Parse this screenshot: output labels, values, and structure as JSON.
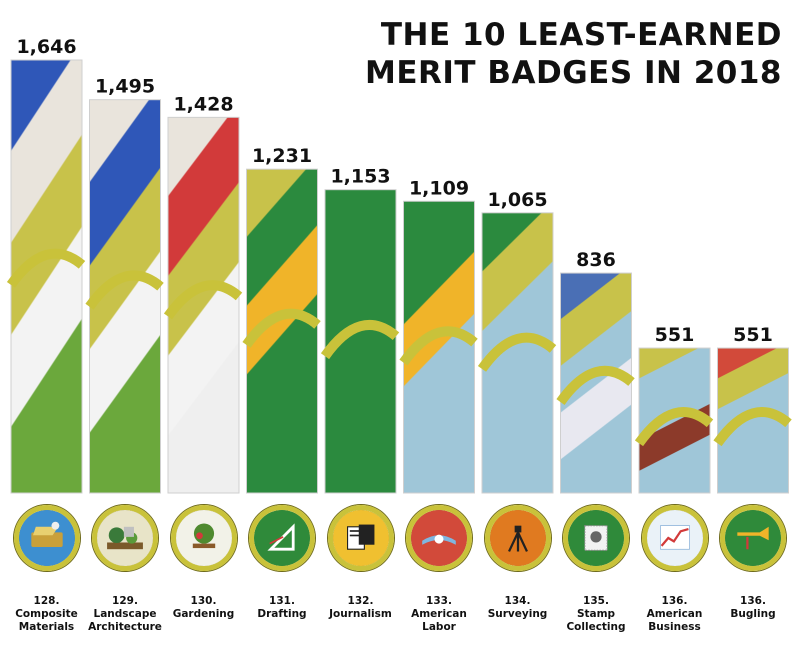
{
  "chart_data": {
    "type": "bar",
    "title_lines": [
      "THE 10 LEAST-EARNED",
      "MERIT BADGES IN 2018"
    ],
    "categories": [
      {
        "rank": "128.",
        "lines": [
          "Composite",
          "Materials"
        ]
      },
      {
        "rank": "129.",
        "lines": [
          "Landscape",
          "Architecture"
        ]
      },
      {
        "rank": "130.",
        "lines": [
          "Gardening"
        ]
      },
      {
        "rank": "131.",
        "lines": [
          "Drafting"
        ]
      },
      {
        "rank": "132.",
        "lines": [
          "Journalism"
        ]
      },
      {
        "rank": "133.",
        "lines": [
          "American",
          "Labor"
        ]
      },
      {
        "rank": "134.",
        "lines": [
          "Surveying"
        ]
      },
      {
        "rank": "135.",
        "lines": [
          "Stamp",
          "Collecting"
        ]
      },
      {
        "rank": "136.",
        "lines": [
          "American",
          "Business"
        ]
      },
      {
        "rank": "136.",
        "lines": [
          "Bugling"
        ]
      }
    ],
    "values": [
      1646,
      1495,
      1428,
      1231,
      1153,
      1109,
      1065,
      836,
      551,
      551
    ],
    "value_labels": [
      "1,646",
      "1,495",
      "1,428",
      "1,231",
      "1,153",
      "1,109",
      "1,065",
      "836",
      "551",
      "551"
    ],
    "xlabel": "",
    "ylabel": "",
    "ylim": [
      0,
      1646
    ],
    "grid": false,
    "legend": "none"
  },
  "colors": {
    "badge_rim": "#c9c23a",
    "text": "#111111",
    "bar_patterns": [
      [
        "#2f57b8",
        "#e9e4dc",
        "#c8c24a",
        "#f3f3f3",
        "#6ba83c"
      ],
      [
        "#e9e4dc",
        "#2f57b8",
        "#c8c24a",
        "#f3f3f3",
        "#6ba83c"
      ],
      [
        "#e9e4dc",
        "#d23a3a",
        "#c8c24a",
        "#f3f3f3",
        "#efefef"
      ],
      [
        "#c8c24a",
        "#2b8a3e",
        "#f0b429",
        "#2b8a3e",
        "#2b8a3e"
      ],
      [
        "#2b8a3e",
        "#2b8a3e",
        "#2b8a3e",
        "#2b8a3e",
        "#2b8a3e"
      ],
      [
        "#2b8a3e",
        "#2b8a3e",
        "#f0b429",
        "#9fc6d8",
        "#9fc6d8"
      ],
      [
        "#2b8a3e",
        "#c8c24a",
        "#9fc6d8",
        "#9fc6d8",
        "#9fc6d8"
      ],
      [
        "#4a6fb5",
        "#c8c24a",
        "#9fc6d8",
        "#e8e8f0",
        "#9fc6d8"
      ],
      [
        "#c8c24a",
        "#9fc6d8",
        "#9fc6d8",
        "#8c3a2a",
        "#9fc6d8"
      ],
      [
        "#d24a3a",
        "#c8c24a",
        "#9fc6d8",
        "#9fc6d8",
        "#9fc6d8"
      ]
    ]
  },
  "badges": [
    {
      "icon": "composite-materials-icon",
      "bg": "#3d8fd0",
      "fg": "#c9a03a"
    },
    {
      "icon": "landscape-architecture-icon",
      "bg": "#e8e4c8",
      "fg": "#3a7a3a"
    },
    {
      "icon": "gardening-icon",
      "bg": "#f2f2e8",
      "fg": "#4f8a2f"
    },
    {
      "icon": "drafting-icon",
      "bg": "#2f8a3a",
      "fg": "#ffffff"
    },
    {
      "icon": "journalism-icon",
      "bg": "#f0c030",
      "fg": "#222222"
    },
    {
      "icon": "american-labor-icon",
      "bg": "#d24a3a",
      "fg": "#7fb6e0"
    },
    {
      "icon": "surveying-icon",
      "bg": "#e07a20",
      "fg": "#222222"
    },
    {
      "icon": "stamp-collecting-icon",
      "bg": "#2f8a3a",
      "fg": "#f2f2f2"
    },
    {
      "icon": "american-business-icon",
      "bg": "#eaf2f8",
      "fg": "#d23a3a"
    },
    {
      "icon": "bugling-icon",
      "bg": "#2f8a3a",
      "fg": "#f0b429"
    }
  ]
}
